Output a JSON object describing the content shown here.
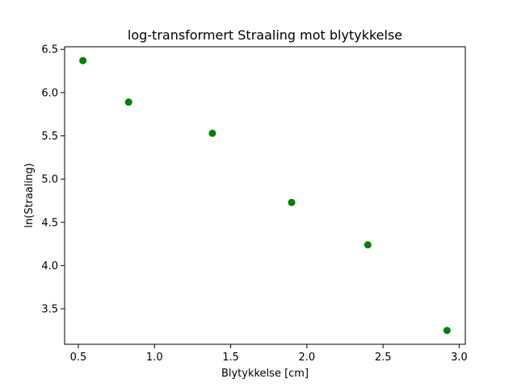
{
  "chart_data": {
    "type": "scatter",
    "title": "log-transformert Straaling mot blytykkelse",
    "xlabel": "Blytykkelse [cm]",
    "ylabel": "ln(Straaling)",
    "xlim": [
      0.41,
      3.04
    ],
    "ylim": [
      3.09,
      6.53
    ],
    "xticks": [
      0.5,
      1.0,
      1.5,
      2.0,
      2.5,
      3.0
    ],
    "xtick_labels": [
      "0.5",
      "1.0",
      "1.5",
      "2.0",
      "2.5",
      "3.0"
    ],
    "yticks": [
      3.5,
      4.0,
      4.5,
      5.0,
      5.5,
      6.0,
      6.5
    ],
    "ytick_labels": [
      "3.5",
      "4.0",
      "4.5",
      "5.0",
      "5.5",
      "6.0",
      "6.5"
    ],
    "grid": false,
    "marker_color": "#008000",
    "series": [
      {
        "points": [
          {
            "x": 0.53,
            "y": 6.37
          },
          {
            "x": 0.83,
            "y": 5.89
          },
          {
            "x": 1.38,
            "y": 5.53
          },
          {
            "x": 1.9,
            "y": 4.73
          },
          {
            "x": 2.4,
            "y": 4.24
          },
          {
            "x": 2.92,
            "y": 3.25
          }
        ]
      }
    ]
  }
}
